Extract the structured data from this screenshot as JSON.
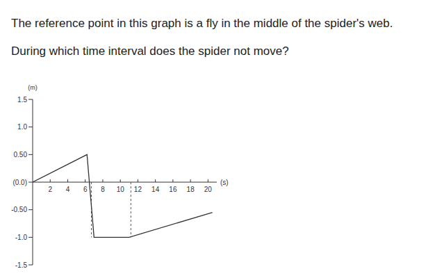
{
  "text": [
    "The reference point in this graph is a fly in the middle of the spider's web.",
    "During which time interval does the spider not move?"
  ],
  "chart_data": {
    "type": "line",
    "x_label": "(s)",
    "y_label": "(m)",
    "x": [
      0,
      6.2,
      7,
      11,
      20.5
    ],
    "values": [
      0,
      0.5,
      -1.0,
      -1.0,
      -0.55
    ],
    "color": "#333333",
    "xlim": [
      0,
      21
    ],
    "xticks": [
      2,
      4,
      6,
      8,
      10,
      12,
      14,
      16,
      18,
      20
    ],
    "ylim": [
      -1.5,
      1.5
    ],
    "yticks": [
      {
        "value": -1.5,
        "label": "-1.5"
      },
      {
        "value": -1.0,
        "label": "-1.0"
      },
      {
        "value": -0.5,
        "label": "-0.50"
      },
      {
        "value": 0,
        "label": "(0.0)"
      },
      {
        "value": 0.5,
        "label": "0.50"
      },
      {
        "value": 1.0,
        "label": "1.0"
      },
      {
        "value": 1.5,
        "label": "1.5"
      }
    ],
    "dashed_lines": [
      {
        "x": 6.7,
        "y1": 0,
        "y2": -1.0
      },
      {
        "x": 11.2,
        "y1": 0,
        "y2": -1.0
      }
    ],
    "grid": false
  }
}
